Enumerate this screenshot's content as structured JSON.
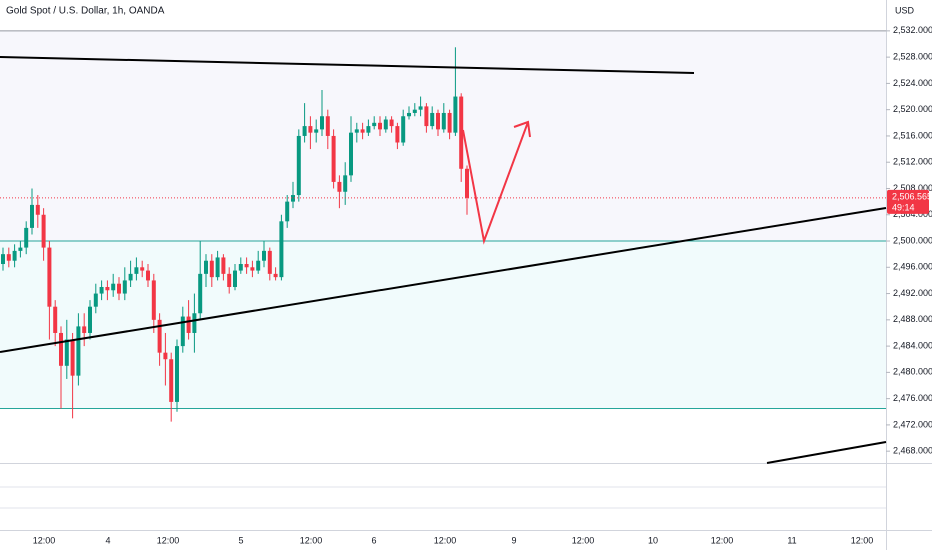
{
  "chart_data": {
    "type": "candlestick",
    "title": "Gold Spot / U.S. Dollar, 1h, OANDA",
    "currency": "USD",
    "up_color": "#089981",
    "down_color": "#f23645",
    "ylim": [
      2466.2,
      2536.7
    ],
    "yticks": [
      {
        "value": 2468,
        "label": "2,468.000"
      },
      {
        "value": 2472,
        "label": "2,472.000"
      },
      {
        "value": 2476,
        "label": "2,476.000"
      },
      {
        "value": 2480,
        "label": "2,480.000"
      },
      {
        "value": 2484,
        "label": "2,484.000"
      },
      {
        "value": 2488,
        "label": "2,488.000"
      },
      {
        "value": 2492,
        "label": "2,492.000"
      },
      {
        "value": 2496,
        "label": "2,496.000"
      },
      {
        "value": 2500,
        "label": "2,500.000"
      },
      {
        "value": 2504,
        "label": "2,504.000"
      },
      {
        "value": 2508,
        "label": "2,508.000"
      },
      {
        "value": 2512,
        "label": "2,512.000"
      },
      {
        "value": 2516,
        "label": "2,516.000"
      },
      {
        "value": 2520,
        "label": "2,520.000"
      },
      {
        "value": 2524,
        "label": "2,524.000"
      },
      {
        "value": 2528,
        "label": "2,528.000"
      },
      {
        "value": 2532,
        "label": "2,532.000"
      }
    ],
    "x_labels": [
      "12:00",
      "4",
      "12:00",
      "5",
      "12:00",
      "6",
      "12:00",
      "9",
      "12:00",
      "10",
      "12:00",
      "11",
      "12:00"
    ],
    "open": [
      2496.5,
      2498.0,
      2497.0,
      2498.5,
      2499.0,
      2502.0,
      2505.5,
      2504.0,
      2499.0,
      2490.0,
      2486.0,
      2481.0,
      2485.0,
      2479.5,
      2487.0,
      2486.0,
      2490.0,
      2492.0,
      2493.0,
      2492.5,
      2493.5,
      2492.0,
      2494.0,
      2495.0,
      2496.0,
      2495.5,
      2494.0,
      2488.0,
      2483.0,
      2482.0,
      2475.5,
      2484.0,
      2488.5,
      2486.0,
      2489.0,
      2495.0,
      2497.0,
      2494.5,
      2497.5,
      2495.0,
      2493.0,
      2495.5,
      2496.5,
      2496.0,
      2495.5,
      2497.0,
      2498.5,
      2495.0,
      2494.5,
      2503.0,
      2506.0,
      2507.0,
      2516.0,
      2517.5,
      2516.5,
      2517.0,
      2519.0,
      2516.0,
      2509.0,
      2507.5,
      2510.0,
      2516.5,
      2517.0,
      2516.5,
      2517.5,
      2518.0,
      2517.0,
      2518.5,
      2517.5,
      2515.0,
      2519.0,
      2519.5,
      2520.0,
      2520.5,
      2517.5,
      2519.5,
      2517.0,
      2519.5,
      2516.5,
      2522.0,
      2511.0
    ],
    "high": [
      2499,
      2499,
      2499.5,
      2500,
      2503,
      2508,
      2507,
      2505,
      2500,
      2491,
      2487,
      2488,
      2486,
      2489,
      2489,
      2491,
      2493.5,
      2494,
      2494,
      2495,
      2494.5,
      2496,
      2497,
      2497.5,
      2497,
      2496.5,
      2495,
      2489,
      2486,
      2483,
      2485,
      2490,
      2491,
      2492,
      2500,
      2498,
      2498,
      2498.5,
      2498,
      2496,
      2496.5,
      2497.5,
      2497.5,
      2497,
      2498.5,
      2500,
      2499,
      2496,
      2504,
      2507,
      2509,
      2517,
      2521,
      2519,
      2518.5,
      2523,
      2520,
      2517,
      2510,
      2512,
      2519,
      2518,
      2518,
      2518.5,
      2519,
      2519,
      2519,
      2519,
      2518,
      2520,
      2520.5,
      2521,
      2522,
      2521,
      2520.5,
      2520,
      2521,
      2520,
      2529.5,
      2522.5,
      2511.5
    ],
    "low": [
      2495.5,
      2496,
      2496,
      2497.5,
      2498,
      2501,
      2502,
      2497,
      2485,
      2484,
      2474.5,
      2479,
      2473,
      2478,
      2484,
      2485,
      2489,
      2491,
      2491,
      2491.5,
      2491,
      2491,
      2493,
      2494,
      2494.5,
      2493,
      2486,
      2481,
      2478,
      2472.5,
      2474,
      2483,
      2485,
      2483,
      2488,
      2493,
      2493,
      2494,
      2494,
      2492,
      2492.5,
      2495,
      2495,
      2494.5,
      2495,
      2496,
      2494,
      2494,
      2494,
      2502,
      2505,
      2506,
      2515,
      2514,
      2515,
      2516,
      2514,
      2508,
      2505,
      2505.5,
      2509,
      2515,
      2515.5,
      2516,
      2517,
      2516,
      2516.5,
      2516.5,
      2514,
      2514.5,
      2518.5,
      2519,
      2519,
      2516.5,
      2517,
      2516,
      2516.5,
      2515.5,
      2516,
      2509,
      2504
    ],
    "close": [
      2498.0,
      2497.0,
      2498.5,
      2499.0,
      2502.0,
      2505.5,
      2504.0,
      2499.0,
      2490.0,
      2486.0,
      2481.0,
      2485.0,
      2479.5,
      2487.0,
      2486.0,
      2490.0,
      2492.0,
      2493.0,
      2492.5,
      2493.5,
      2492.0,
      2494.0,
      2495.0,
      2496.0,
      2495.5,
      2494.0,
      2488.0,
      2483.0,
      2482.0,
      2475.5,
      2484.0,
      2488.5,
      2486.0,
      2489.0,
      2495.0,
      2497.0,
      2494.5,
      2497.5,
      2495.0,
      2493.0,
      2495.5,
      2496.5,
      2496.0,
      2495.5,
      2497.0,
      2498.5,
      2495.0,
      2494.5,
      2503.0,
      2506.0,
      2507.0,
      2516.0,
      2517.5,
      2516.5,
      2517.0,
      2519.0,
      2516.0,
      2509.0,
      2507.5,
      2510.0,
      2516.5,
      2517.0,
      2516.5,
      2517.5,
      2518.0,
      2517.0,
      2518.5,
      2517.5,
      2515.0,
      2519.0,
      2519.5,
      2520.0,
      2520.5,
      2517.5,
      2519.5,
      2517.0,
      2519.5,
      2516.5,
      2522.0,
      2511.0,
      2506.565
    ],
    "horizontal_lines": [
      2532,
      2500,
      2474.5
    ],
    "last_price": 2506.565,
    "last_price_label": "2,506.565",
    "countdown": "49:14"
  }
}
